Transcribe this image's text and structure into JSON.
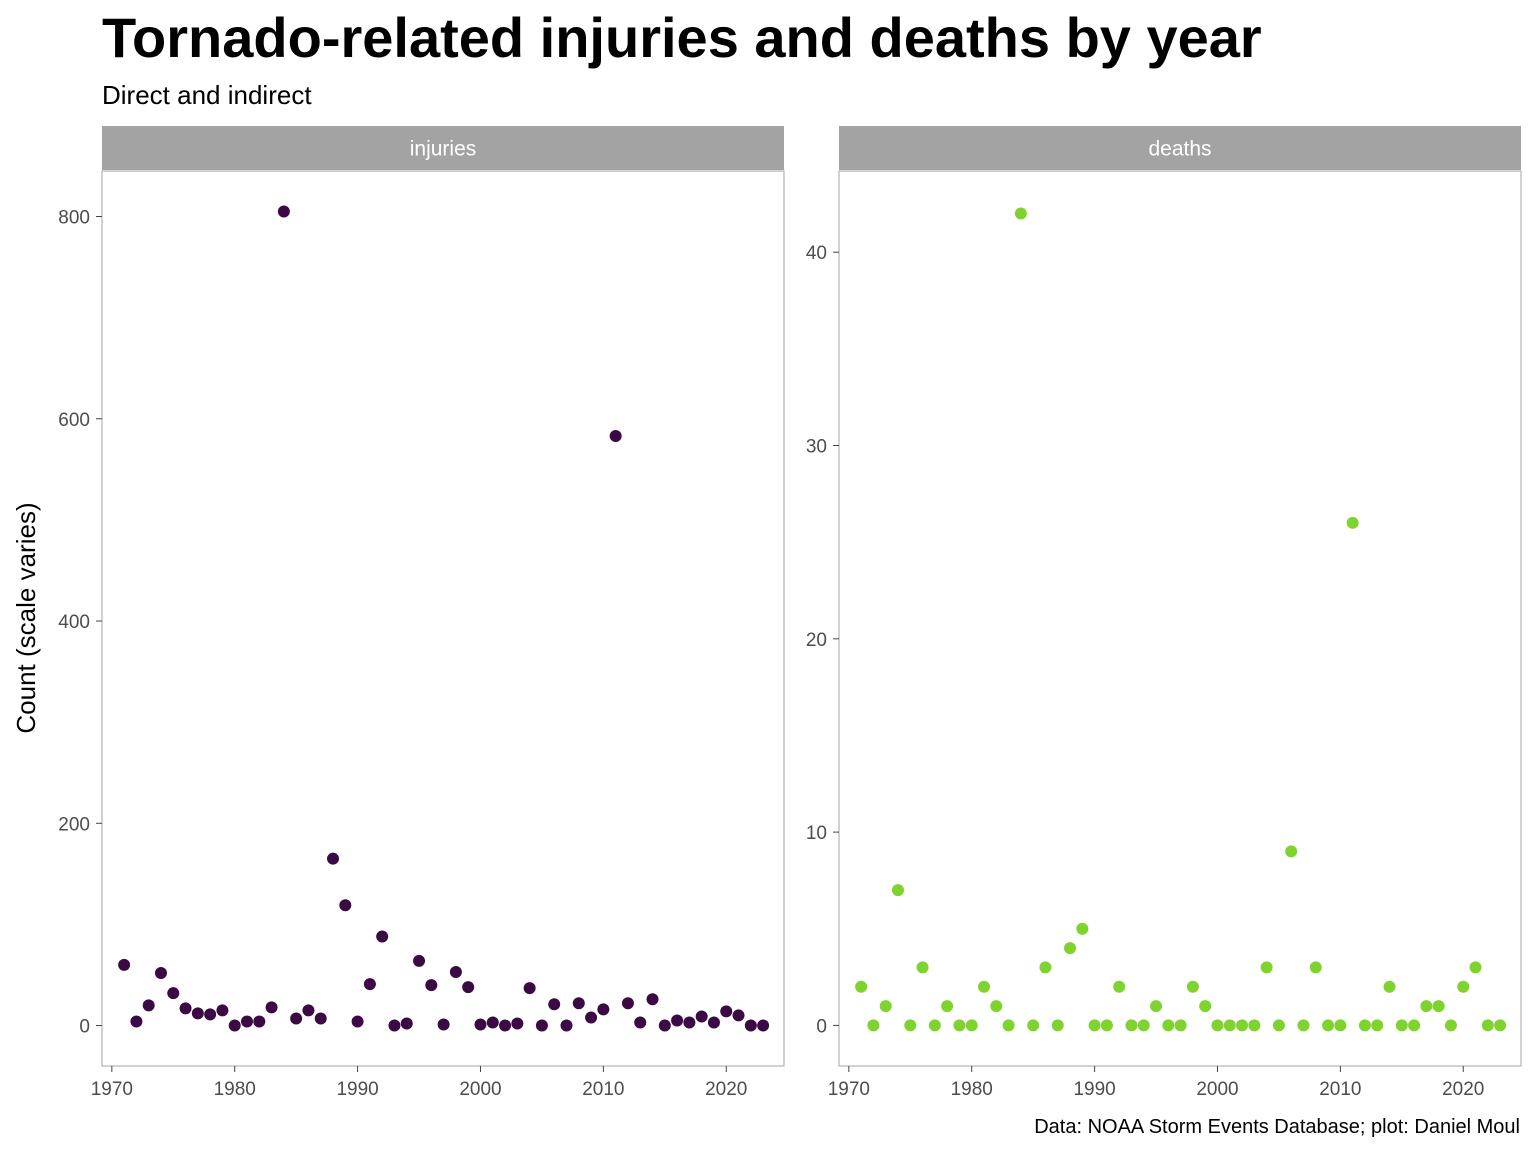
{
  "chart_data": {
    "type": "scatter",
    "title": "Tornado-related injuries and deaths by year",
    "subtitle": "Direct and indirect",
    "ylabel": "Count (scale varies)",
    "caption": "Data: NOAA Storm Events Database; plot: Daniel Moul",
    "grid": false,
    "legend": "none",
    "panels": [
      {
        "name": "injuries",
        "color": "#3b0a45",
        "xlim": [
          1969.2,
          2024.7
        ],
        "ylim": [
          -40,
          845
        ],
        "xticks": [
          1970,
          1980,
          1990,
          2000,
          2010,
          2020
        ],
        "yticks": [
          0,
          200,
          400,
          600,
          800
        ],
        "x": [
          1971,
          1972,
          1973,
          1974,
          1975,
          1976,
          1977,
          1978,
          1979,
          1980,
          1981,
          1982,
          1983,
          1984,
          1985,
          1986,
          1987,
          1988,
          1989,
          1990,
          1991,
          1992,
          1993,
          1994,
          1995,
          1996,
          1997,
          1998,
          1999,
          2000,
          2001,
          2002,
          2003,
          2004,
          2005,
          2006,
          2007,
          2008,
          2009,
          2010,
          2011,
          2012,
          2013,
          2014,
          2015,
          2016,
          2017,
          2018,
          2019,
          2020,
          2021,
          2022,
          2023
        ],
        "y": [
          60,
          4,
          20,
          52,
          32,
          17,
          12,
          11,
          15,
          0,
          4,
          4,
          18,
          805,
          7,
          15,
          7,
          165,
          119,
          4,
          41,
          88,
          0,
          2,
          64,
          40,
          1,
          53,
          38,
          1,
          3,
          0,
          2,
          37,
          0,
          21,
          0,
          22,
          8,
          16,
          583,
          22,
          3,
          26,
          0,
          5,
          3,
          9,
          3,
          14,
          10,
          0,
          0
        ]
      },
      {
        "name": "deaths",
        "color": "#7fd32f",
        "xlim": [
          1969.2,
          2024.7
        ],
        "ylim": [
          -2.1,
          44.2
        ],
        "xticks": [
          1970,
          1980,
          1990,
          2000,
          2010,
          2020
        ],
        "yticks": [
          0,
          10,
          20,
          30,
          40
        ],
        "x": [
          1971,
          1972,
          1973,
          1974,
          1975,
          1976,
          1977,
          1978,
          1979,
          1980,
          1981,
          1982,
          1983,
          1984,
          1985,
          1986,
          1987,
          1988,
          1989,
          1990,
          1991,
          1992,
          1993,
          1994,
          1995,
          1996,
          1997,
          1998,
          1999,
          2000,
          2001,
          2002,
          2003,
          2004,
          2005,
          2006,
          2007,
          2008,
          2009,
          2010,
          2011,
          2012,
          2013,
          2014,
          2015,
          2016,
          2017,
          2018,
          2019,
          2020,
          2021,
          2022,
          2023
        ],
        "y": [
          2,
          0,
          1,
          7,
          0,
          3,
          0,
          1,
          0,
          0,
          2,
          1,
          0,
          42,
          0,
          3,
          0,
          4,
          5,
          0,
          0,
          2,
          0,
          0,
          1,
          0,
          0,
          2,
          1,
          0,
          0,
          0,
          0,
          3,
          0,
          9,
          0,
          3,
          0,
          0,
          26,
          0,
          0,
          2,
          0,
          0,
          1,
          1,
          0,
          2,
          3,
          0,
          0
        ]
      }
    ]
  }
}
